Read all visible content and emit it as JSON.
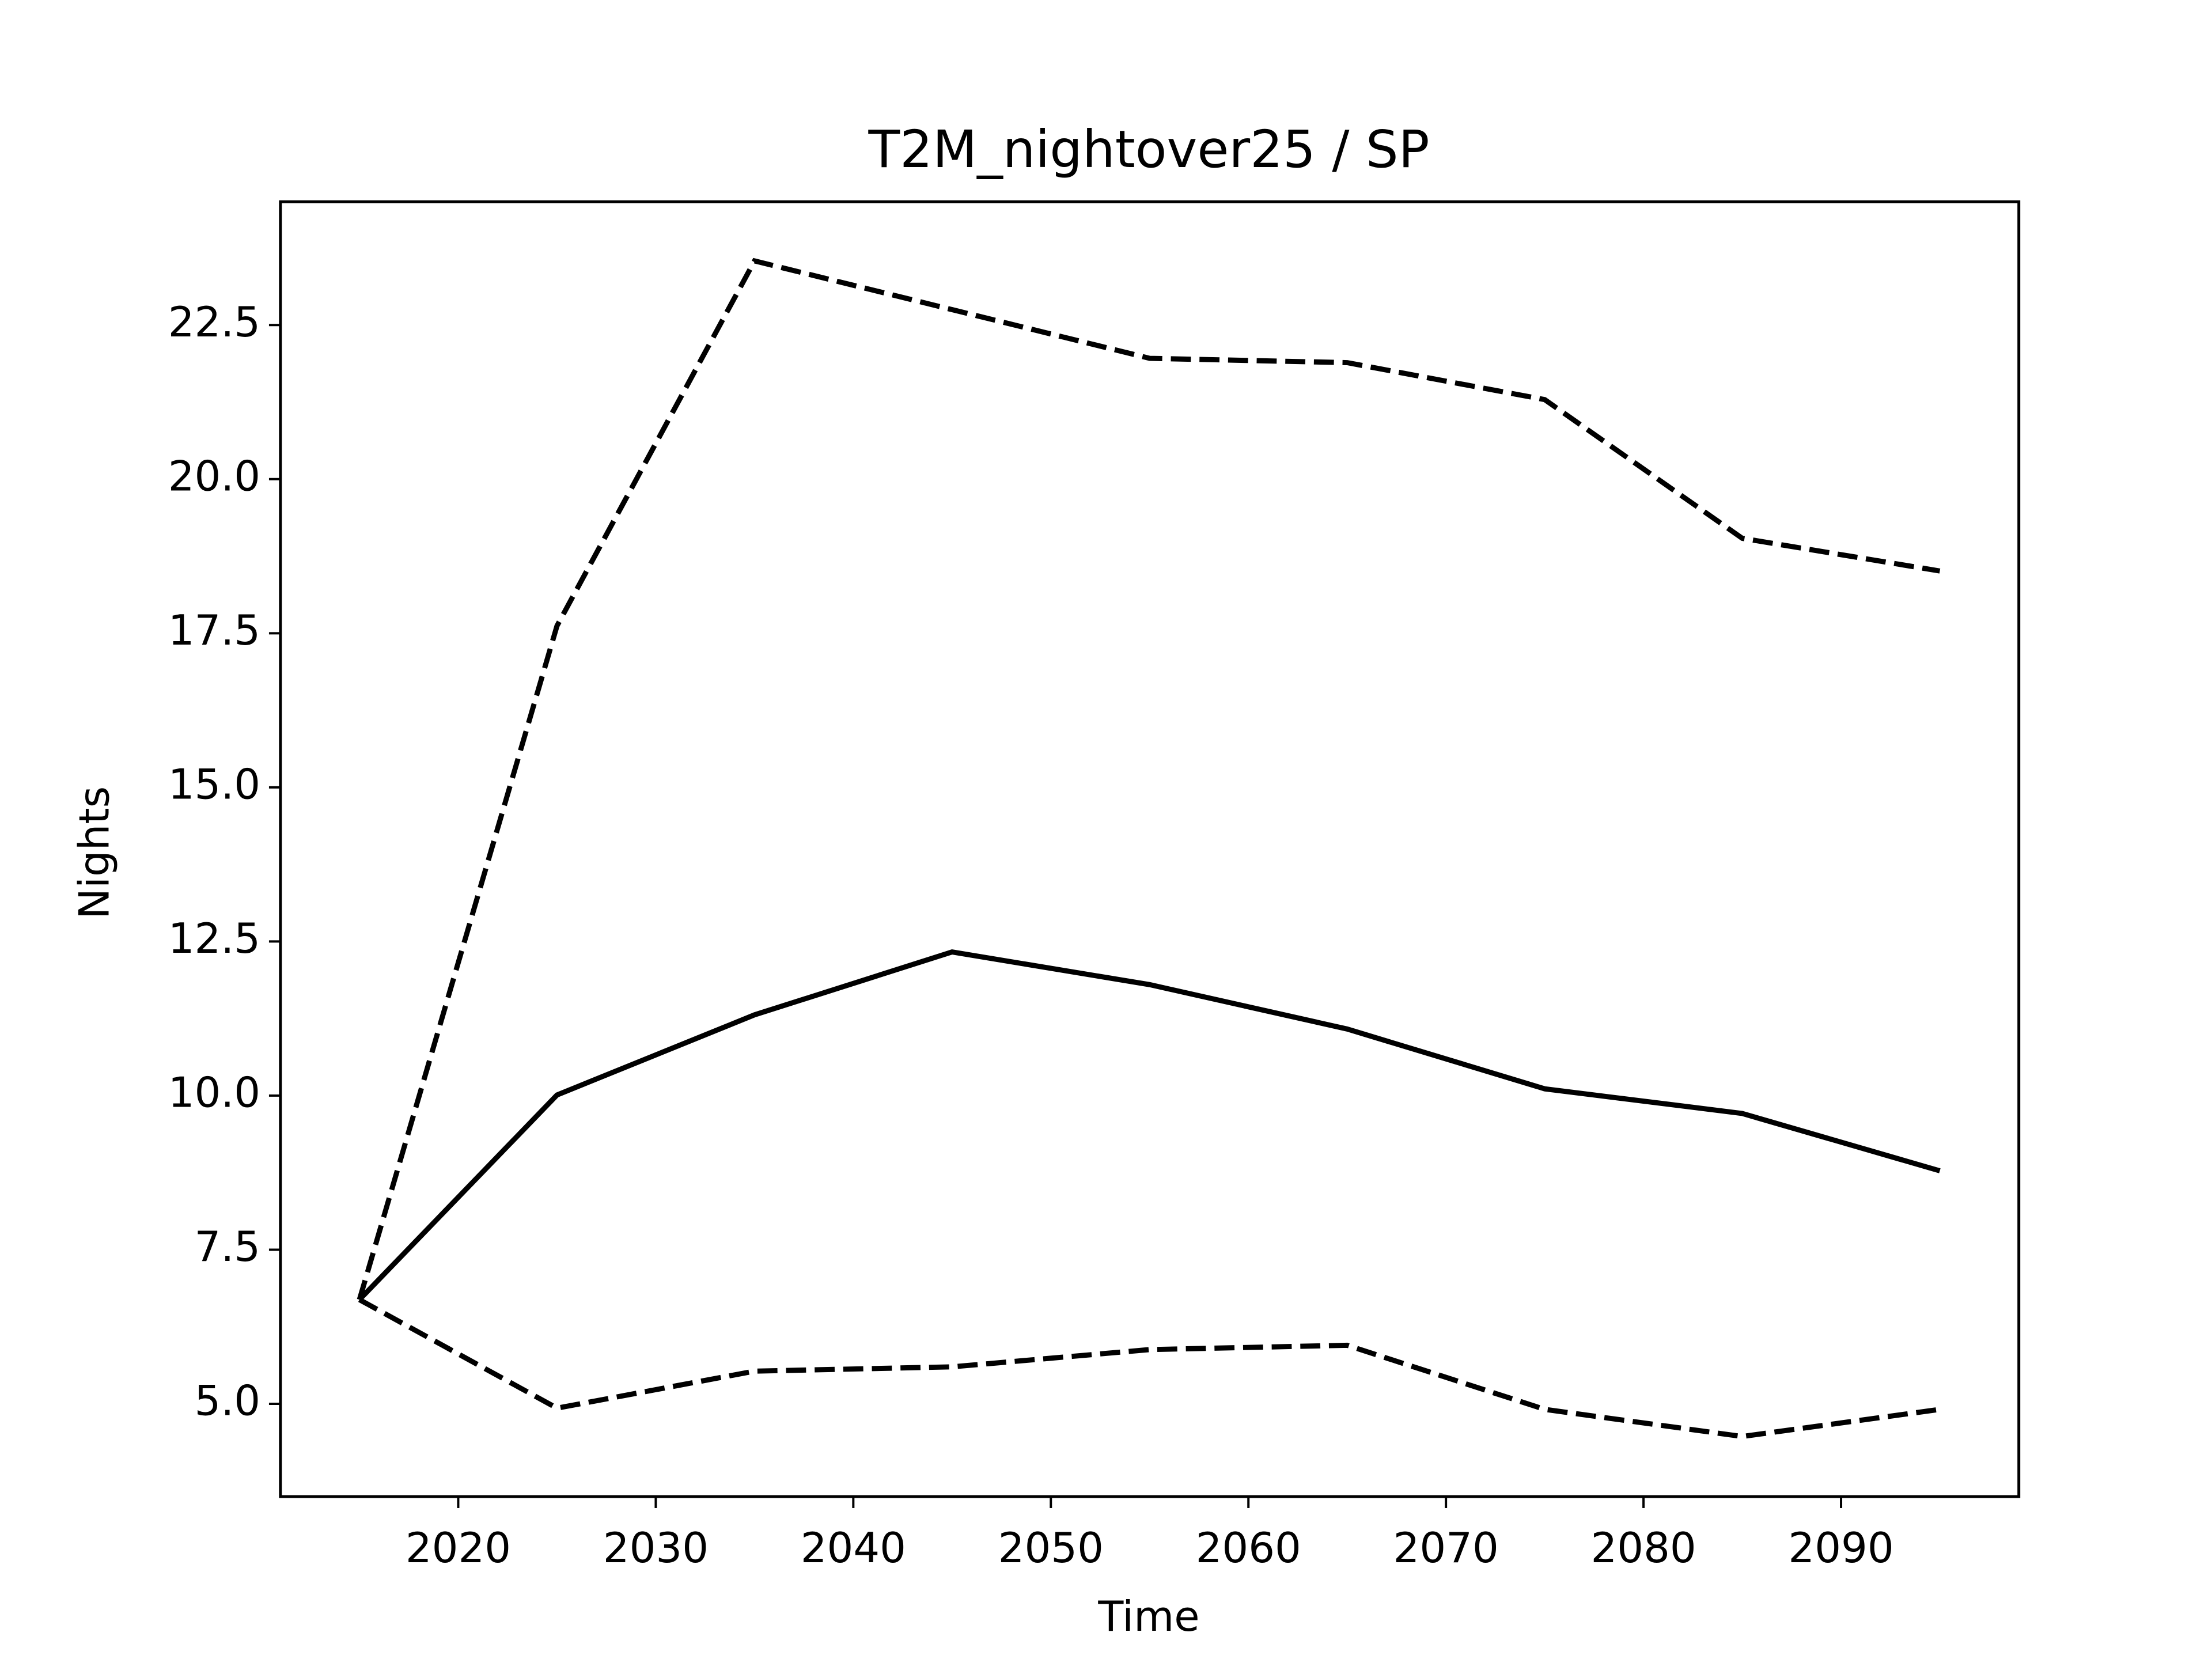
{
  "chart_data": {
    "type": "line",
    "title": "T2M_nightover25 / SP",
    "xlabel": "Time",
    "ylabel": "Nights",
    "x": [
      2015,
      2025,
      2035,
      2045,
      2055,
      2065,
      2075,
      2085,
      2095
    ],
    "series": [
      {
        "color": "#000000",
        "linestyle": "solid",
        "values": [
          6.69,
          10.01,
          11.31,
          12.33,
          11.8,
          11.08,
          10.11,
          9.71,
          8.78
        ]
      },
      {
        "color": "#000000",
        "linestyle": "dashed",
        "values": [
          6.69,
          17.62,
          23.54,
          22.75,
          21.96,
          21.89,
          21.29,
          19.04,
          18.51
        ]
      },
      {
        "color": "#000000",
        "linestyle": "dashed",
        "values": [
          6.69,
          4.93,
          5.53,
          5.6,
          5.88,
          5.95,
          4.91,
          4.47,
          4.91
        ]
      }
    ],
    "xlim": [
      2011,
      2099
    ],
    "xticks": [
      2020,
      2030,
      2040,
      2050,
      2060,
      2070,
      2080,
      2090
    ],
    "ylim": [
      3.495,
      24.5
    ],
    "yticks": [
      {
        "value": 5,
        "label": "5.0"
      },
      {
        "value": 7.5,
        "label": "7.5"
      },
      {
        "value": 10,
        "label": "10.0"
      },
      {
        "value": 12.5,
        "label": "12.5"
      },
      {
        "value": 15,
        "label": "15.0"
      },
      {
        "value": 17.5,
        "label": "17.5"
      },
      {
        "value": 20,
        "label": "20.0"
      },
      {
        "value": 22.5,
        "label": "22.5"
      }
    ],
    "grid": false
  }
}
